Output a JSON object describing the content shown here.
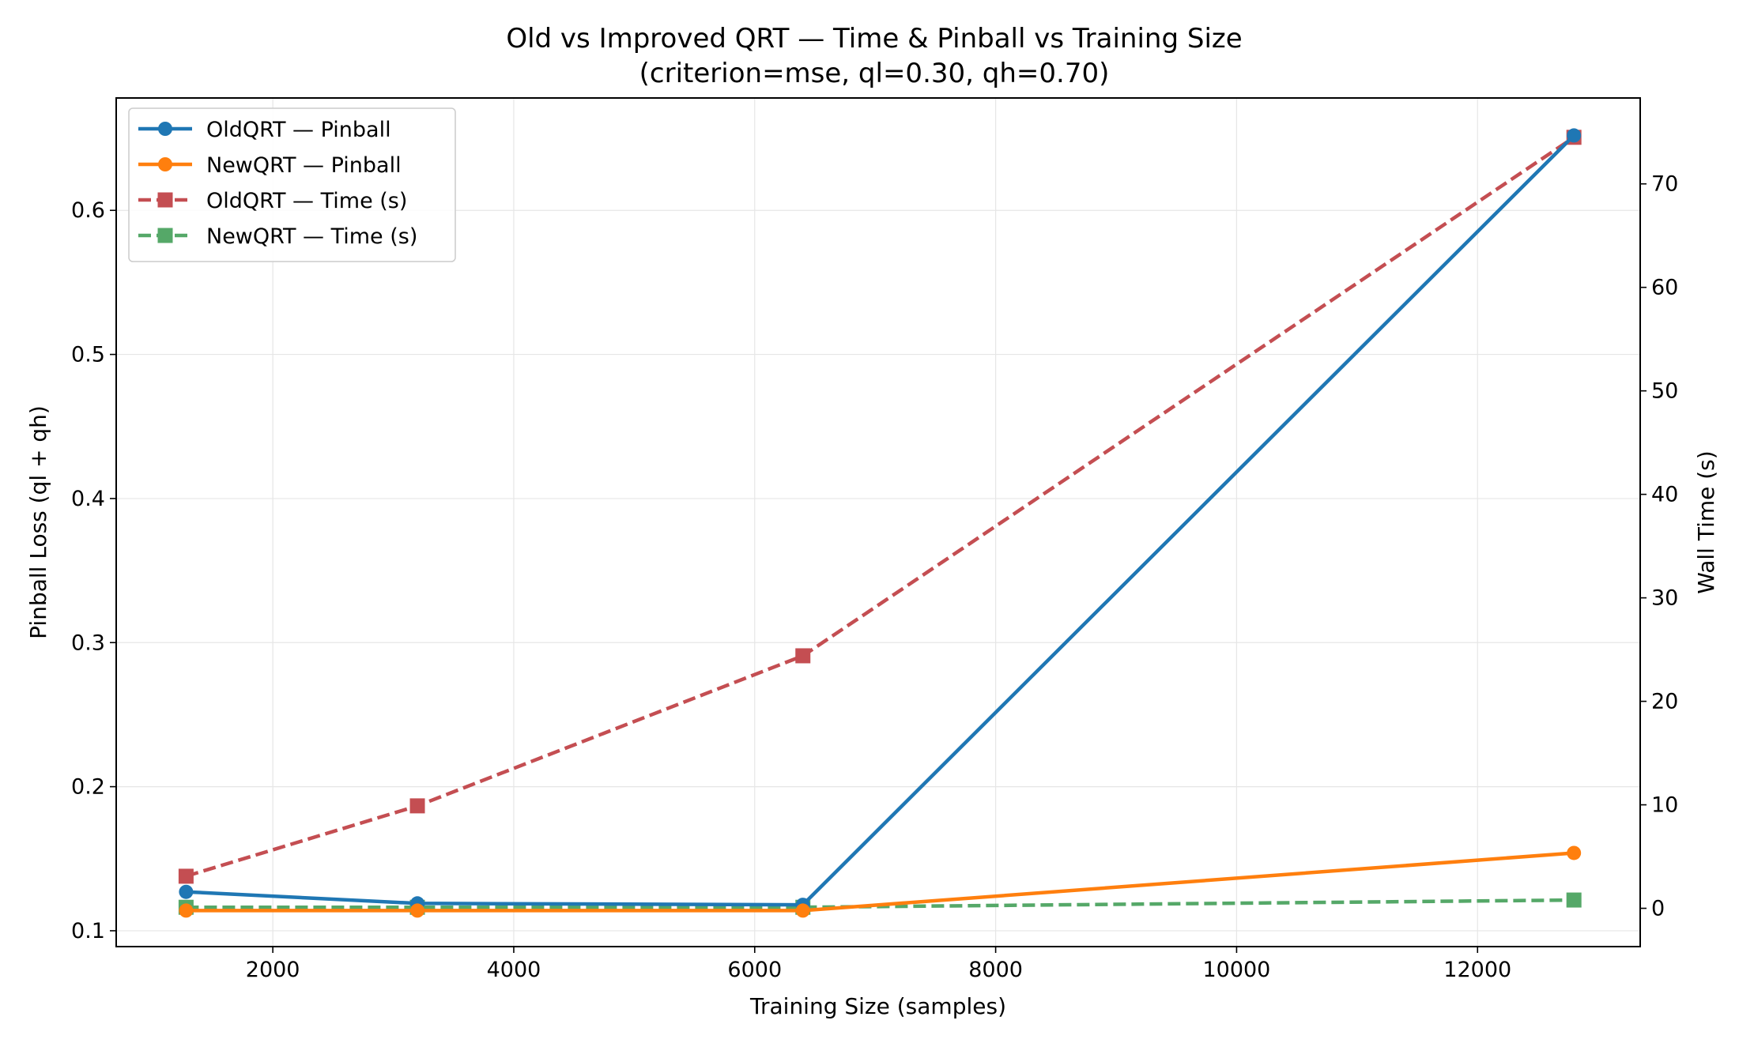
{
  "chart_data": {
    "type": "line",
    "title": "Old vs Improved QRT — Time & Pinball vs Training Size",
    "subtitle": "(criterion=mse, ql=0.30, qh=0.70)",
    "xlabel": "Training Size (samples)",
    "ylabel": "Pinball Loss (ql + qh)",
    "y2label": "Wall Time (s)",
    "xlim": [
      700,
      13350
    ],
    "ylim": [
      0.089,
      0.678
    ],
    "y2lim": [
      -3.7,
      78.3
    ],
    "xticks": [
      2000,
      4000,
      6000,
      8000,
      10000,
      12000
    ],
    "yticks": [
      0.1,
      0.2,
      0.3,
      0.4,
      0.5,
      0.6
    ],
    "y2ticks": [
      0,
      10,
      20,
      30,
      40,
      50,
      60,
      70
    ],
    "grid": true,
    "legend_position": "upper-left",
    "x": [
      1280,
      3200,
      6400,
      12800
    ],
    "series": [
      {
        "name": "OldQRT — Pinball",
        "axis": "left",
        "values": [
          0.127,
          0.119,
          0.118,
          0.652
        ],
        "color": "#1f77b4",
        "dash": false,
        "marker": "circle"
      },
      {
        "name": "NewQRT — Pinball",
        "axis": "left",
        "values": [
          0.114,
          0.114,
          0.114,
          0.154
        ],
        "color": "#ff7f0e",
        "dash": false,
        "marker": "circle"
      },
      {
        "name": "OldQRT — Time (s)",
        "axis": "right",
        "values": [
          3.1,
          9.9,
          24.4,
          74.5
        ],
        "color": "#c44e52",
        "dash": true,
        "marker": "square"
      },
      {
        "name": "NewQRT — Time (s)",
        "axis": "right",
        "values": [
          0.1,
          0.1,
          0.1,
          0.8
        ],
        "color": "#55a868",
        "dash": true,
        "marker": "square"
      }
    ]
  }
}
